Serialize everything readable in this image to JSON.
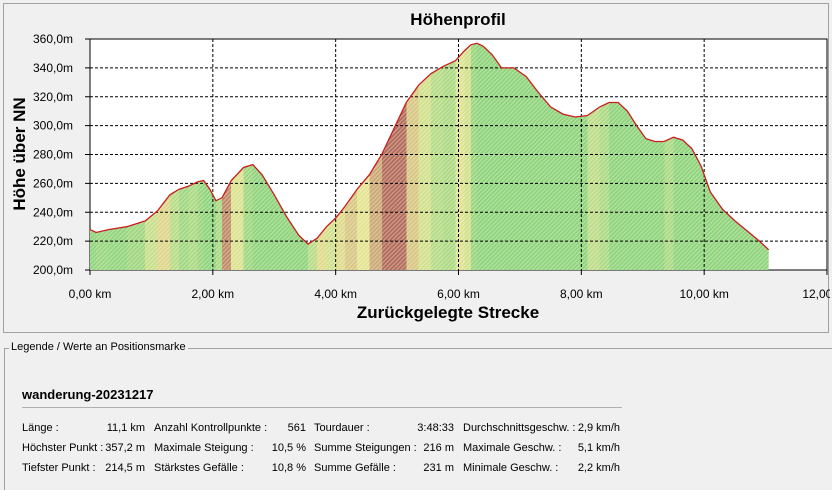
{
  "chart_data": {
    "type": "area",
    "title": "Höhenprofil",
    "xlabel": "Zurückgelegte Strecke",
    "ylabel": "Höhe über NN",
    "xlim": [
      0,
      12
    ],
    "ylim": [
      200,
      360
    ],
    "x_ticks": [
      "0,00 km",
      "2,00 km",
      "4,00 km",
      "6,00 km",
      "8,00 km",
      "10,00 km",
      "12,00 km"
    ],
    "y_ticks": [
      "200,0m",
      "220,0m",
      "240,0m",
      "260,0m",
      "280,0m",
      "300,0m",
      "320,0m",
      "340,0m",
      "360,0m"
    ],
    "grid": true,
    "x": [
      0,
      0.1,
      0.3,
      0.6,
      0.9,
      1.1,
      1.3,
      1.45,
      1.6,
      1.75,
      1.85,
      1.95,
      2.05,
      2.15,
      2.3,
      2.5,
      2.65,
      2.8,
      3.0,
      3.2,
      3.4,
      3.55,
      3.7,
      3.85,
      4.0,
      4.15,
      4.35,
      4.55,
      4.75,
      4.95,
      5.15,
      5.35,
      5.55,
      5.75,
      5.95,
      6.1,
      6.2,
      6.3,
      6.4,
      6.55,
      6.7,
      6.9,
      7.1,
      7.3,
      7.5,
      7.7,
      7.9,
      8.1,
      8.3,
      8.45,
      8.6,
      8.75,
      8.9,
      9.05,
      9.2,
      9.35,
      9.5,
      9.65,
      9.8,
      9.95,
      10.1,
      10.3,
      10.5,
      10.7,
      10.9,
      11.05
    ],
    "values": [
      228,
      226,
      228,
      230,
      234,
      241,
      252,
      256,
      258,
      261,
      262,
      256,
      248,
      250,
      262,
      271,
      273,
      266,
      252,
      237,
      224,
      218,
      222,
      230,
      236,
      244,
      256,
      266,
      280,
      298,
      316,
      328,
      336,
      341,
      345,
      352,
      356,
      357,
      355,
      349,
      340,
      340,
      334,
      323,
      313,
      308,
      306,
      307,
      313,
      316,
      316,
      310,
      300,
      291,
      289,
      289,
      292,
      290,
      284,
      272,
      254,
      242,
      234,
      227,
      220,
      214
    ],
    "fill_gradient": [
      "#8ed37a",
      "#e3e48f",
      "#9a2e3c"
    ],
    "line_color": "#c81e1e"
  },
  "legend": {
    "caption": "Legende / Werte an Positionsmarke",
    "track_name": "wanderung-20231217",
    "rows": [
      [
        {
          "label": "Länge :",
          "value": "11,1 km"
        },
        {
          "label": "Anzahl Kontrollpunkte :",
          "value": "561"
        },
        {
          "label": "Tourdauer :",
          "value": "3:48:33"
        },
        {
          "label": "Durchschnittsgeschw. :",
          "value": "2,9 km/h"
        }
      ],
      [
        {
          "label": "Höchster Punkt :",
          "value": "357,2 m"
        },
        {
          "label": "Maximale Steigung :",
          "value": "10,5 %"
        },
        {
          "label": "Summe Steigungen :",
          "value": "216 m"
        },
        {
          "label": "Maximale Geschw. :",
          "value": "5,1 km/h"
        }
      ],
      [
        {
          "label": "Tiefster Punkt :",
          "value": "214,5 m"
        },
        {
          "label": "Stärkstes Gefälle :",
          "value": "10,8 %"
        },
        {
          "label": "Summe Gefälle :",
          "value": "231 m"
        },
        {
          "label": "Minimale Geschw. :",
          "value": "2,2 km/h"
        }
      ]
    ]
  }
}
